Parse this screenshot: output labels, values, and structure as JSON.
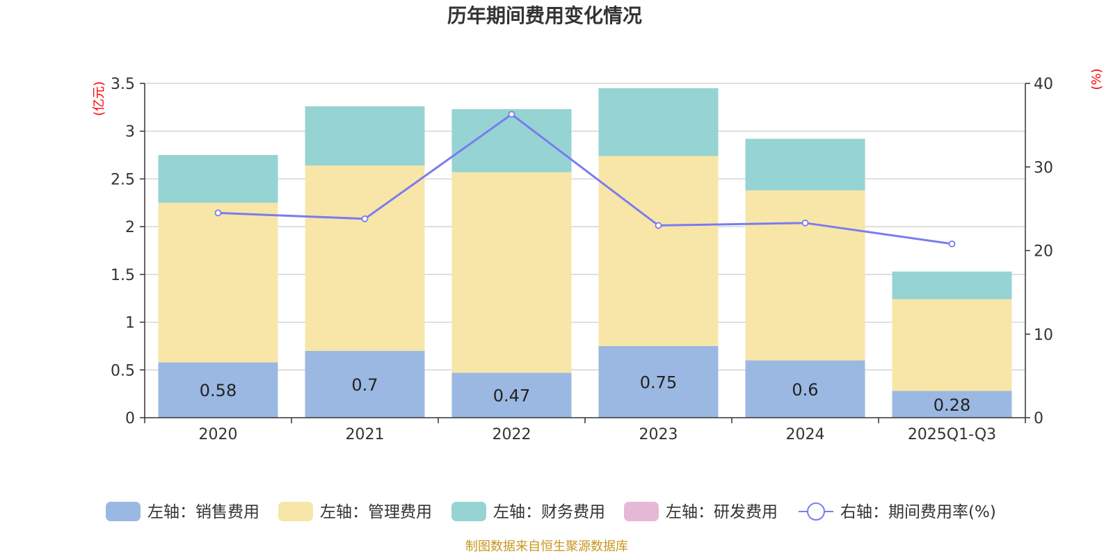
{
  "title": "历年期间费用变化情况",
  "source": "制图数据来自恒生聚源数据库",
  "colors": {
    "sales": "#9bb8e2",
    "admin": "#f7e6a8",
    "finance": "#96d3d3",
    "rnd": "#e6b8d8",
    "line": "#7b7bf0",
    "unit": "#ff0000",
    "source": "#c8961e",
    "grid": "#cccccc",
    "axis": "#333333"
  },
  "chart_data": {
    "type": "bar",
    "stacked": true,
    "title": "历年期间费用变化情况",
    "categories": [
      "2020",
      "2021",
      "2022",
      "2023",
      "2024",
      "2025Q1-Q3"
    ],
    "left_axis": {
      "unit": "(亿元)",
      "ylim": [
        0,
        3.5
      ],
      "ticks": [
        "0",
        "0.5",
        "1",
        "1.5",
        "2",
        "2.5",
        "3",
        "3.5"
      ]
    },
    "right_axis": {
      "unit": "(%)",
      "ylim": [
        0,
        40
      ],
      "ticks": [
        "0",
        "10",
        "20",
        "30",
        "40"
      ]
    },
    "series": [
      {
        "key": "sales",
        "name": "左轴：销售费用",
        "axis": "left",
        "type": "bar",
        "values": [
          0.58,
          0.7,
          0.47,
          0.75,
          0.6,
          0.28
        ],
        "labels": [
          "0.58",
          "0.7",
          "0.47",
          "0.75",
          "0.6",
          "0.28"
        ]
      },
      {
        "key": "admin",
        "name": "左轴：管理费用",
        "axis": "left",
        "type": "bar",
        "values": [
          1.67,
          1.94,
          2.1,
          1.99,
          1.78,
          0.96
        ]
      },
      {
        "key": "finance",
        "name": "左轴：财务费用",
        "axis": "left",
        "type": "bar",
        "values": [
          0.5,
          0.62,
          0.66,
          0.71,
          0.54,
          0.29
        ]
      },
      {
        "key": "rnd",
        "name": "左轴：研发费用",
        "axis": "left",
        "type": "bar",
        "values": [
          0,
          0,
          0,
          0,
          0,
          0
        ]
      },
      {
        "key": "line",
        "name": "右轴：期间费用率(%)",
        "axis": "right",
        "type": "line",
        "values": [
          24.5,
          23.8,
          36.3,
          23.0,
          23.3,
          20.8
        ]
      }
    ],
    "grid": true,
    "legend_position": "bottom"
  }
}
